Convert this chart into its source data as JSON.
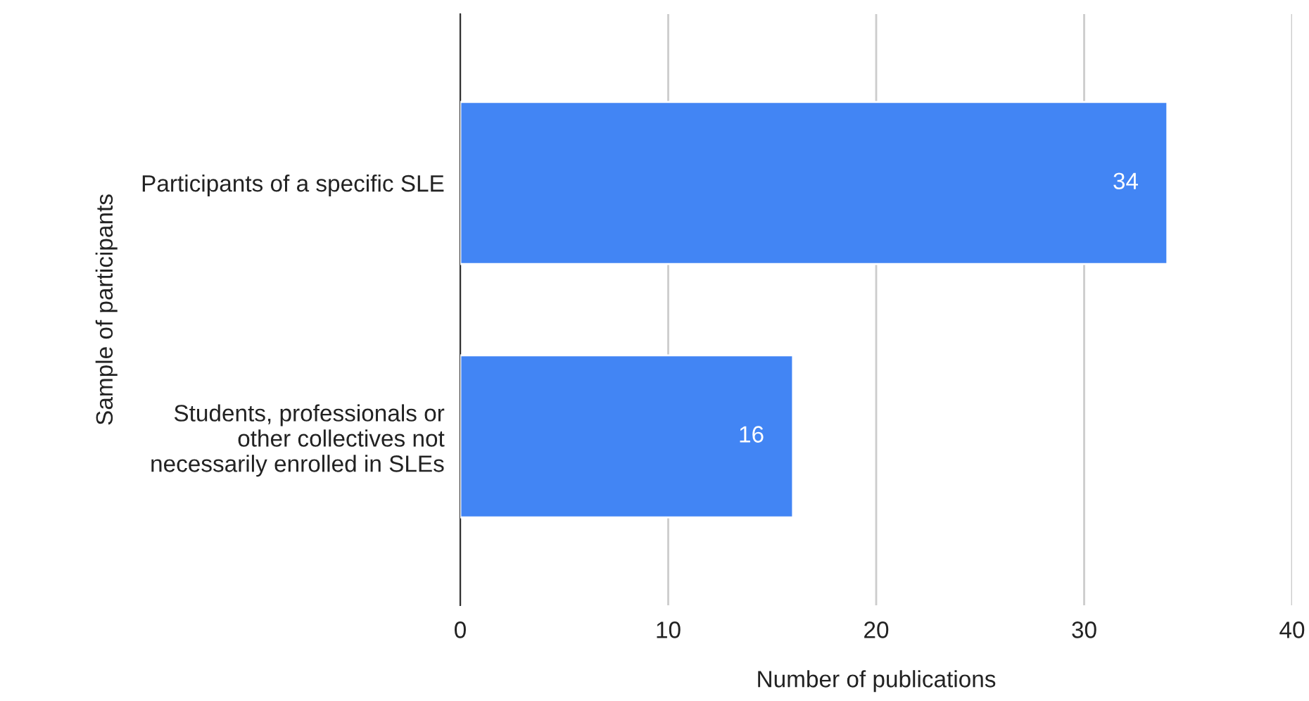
{
  "chart_data": {
    "type": "bar",
    "orientation": "horizontal",
    "categories": [
      "Participants of a specific SLE",
      "Students, professionals or\nother collectives not\nnecessarily enrolled in SLEs"
    ],
    "values": [
      34,
      16
    ],
    "color": "#4285f4",
    "xlim": [
      0,
      40
    ],
    "xticks": [
      0,
      10,
      20,
      30,
      40
    ],
    "grid": "x",
    "data_labels": true,
    "xlabel": "Number of publications",
    "ylabel": "Sample of participants"
  }
}
